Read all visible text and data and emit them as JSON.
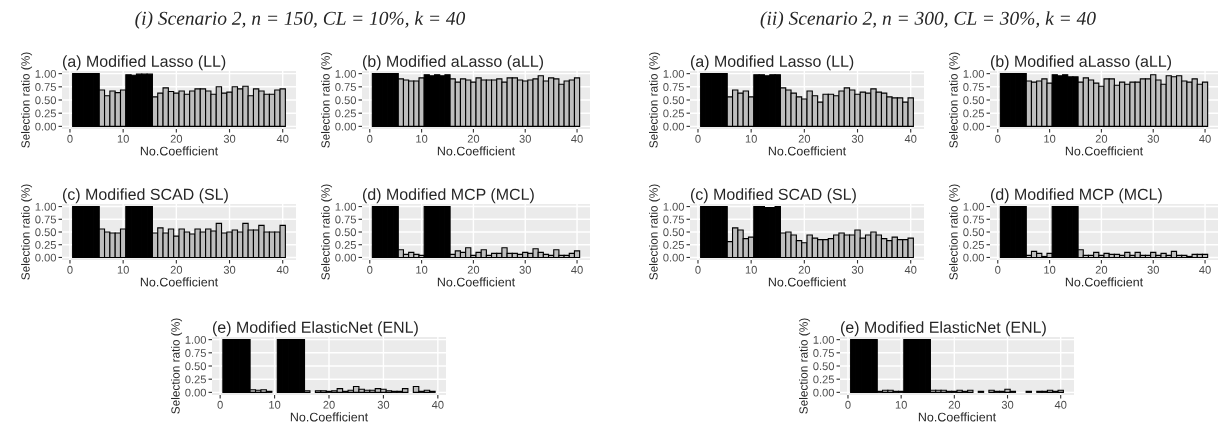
{
  "chart_data": [
    {
      "type": "bar",
      "title": "(a) Modified Lasso (LL)",
      "annotations": [
        "(i) Scenario 2, n = 150, CL = 10%, k = 40"
      ],
      "xlabel": "No.Coefficient",
      "ylabel": "Selection ratio (%)",
      "x": [
        1,
        2,
        3,
        4,
        5,
        6,
        7,
        8,
        9,
        10,
        11,
        12,
        13,
        14,
        15,
        16,
        17,
        18,
        19,
        20,
        21,
        22,
        23,
        24,
        25,
        26,
        27,
        28,
        29,
        30,
        31,
        32,
        33,
        34,
        35,
        36,
        37,
        38,
        39,
        40
      ],
      "values": [
        1,
        1,
        1,
        1,
        1,
        0.69,
        0.58,
        0.67,
        0.64,
        0.69,
        0.98,
        0.97,
        0.99,
        0.99,
        0.99,
        0.56,
        0.63,
        0.73,
        0.66,
        0.63,
        0.67,
        0.61,
        0.67,
        0.71,
        0.71,
        0.67,
        0.61,
        0.75,
        0.63,
        0.65,
        0.75,
        0.71,
        0.76,
        0.58,
        0.71,
        0.67,
        0.61,
        0.61,
        0.69,
        0.71
      ],
      "colors": [
        "#000000",
        "#000000",
        "#000000",
        "#000000",
        "#000000",
        "#bebebe",
        "#bebebe",
        "#bebebe",
        "#bebebe",
        "#bebebe",
        "#000000",
        "#000000",
        "#000000",
        "#000000",
        "#000000",
        "#bebebe",
        "#bebebe",
        "#bebebe",
        "#bebebe",
        "#bebebe",
        "#bebebe",
        "#bebebe",
        "#bebebe",
        "#bebebe",
        "#bebebe",
        "#bebebe",
        "#bebebe",
        "#bebebe",
        "#bebebe",
        "#bebebe",
        "#bebebe",
        "#bebebe",
        "#bebebe",
        "#bebebe",
        "#bebebe",
        "#bebebe",
        "#bebebe",
        "#bebebe",
        "#bebebe",
        "#bebebe"
      ],
      "xlim": [
        -1.5,
        42.5
      ],
      "xticks": [
        0,
        10,
        20,
        30,
        40
      ],
      "ylim": [
        -0.05,
        1.05
      ],
      "yticks": [
        {
          "value": 0,
          "label": "0.00"
        },
        {
          "value": 0.25,
          "label": "0.25"
        },
        {
          "value": 0.5,
          "label": "0.50"
        },
        {
          "value": 0.75,
          "label": "0.75"
        },
        {
          "value": 1,
          "label": "1.00"
        }
      ],
      "grid": true
    },
    {
      "type": "bar",
      "title": "(b) Modified aLasso (aLL)",
      "xlabel": "No.Coefficient",
      "ylabel": "Selection ratio (%)",
      "x": [
        1,
        2,
        3,
        4,
        5,
        6,
        7,
        8,
        9,
        10,
        11,
        12,
        13,
        14,
        15,
        16,
        17,
        18,
        19,
        20,
        21,
        22,
        23,
        24,
        25,
        26,
        27,
        28,
        29,
        30,
        31,
        32,
        33,
        34,
        35,
        36,
        37,
        38,
        39,
        40
      ],
      "values": [
        1,
        1,
        1,
        1,
        1,
        0.9,
        0.88,
        0.86,
        0.86,
        0.92,
        0.98,
        0.96,
        0.98,
        0.96,
        0.98,
        0.9,
        0.84,
        0.9,
        0.88,
        0.84,
        0.92,
        0.88,
        0.88,
        0.88,
        0.9,
        0.84,
        0.92,
        0.92,
        0.88,
        0.86,
        0.88,
        0.9,
        0.96,
        0.86,
        0.92,
        0.9,
        0.8,
        0.86,
        0.88,
        0.92
      ],
      "colors": [
        "#000000",
        "#000000",
        "#000000",
        "#000000",
        "#000000",
        "#bebebe",
        "#bebebe",
        "#bebebe",
        "#bebebe",
        "#bebebe",
        "#000000",
        "#000000",
        "#000000",
        "#000000",
        "#000000",
        "#bebebe",
        "#bebebe",
        "#bebebe",
        "#bebebe",
        "#bebebe",
        "#bebebe",
        "#bebebe",
        "#bebebe",
        "#bebebe",
        "#bebebe",
        "#bebebe",
        "#bebebe",
        "#bebebe",
        "#bebebe",
        "#bebebe",
        "#bebebe",
        "#bebebe",
        "#bebebe",
        "#bebebe",
        "#bebebe",
        "#bebebe",
        "#bebebe",
        "#bebebe",
        "#bebebe",
        "#bebebe"
      ],
      "xlim": [
        -1.5,
        42.5
      ],
      "xticks": [
        0,
        10,
        20,
        30,
        40
      ],
      "ylim": [
        -0.05,
        1.05
      ],
      "yticks": [
        {
          "value": 0,
          "label": "0.00"
        },
        {
          "value": 0.25,
          "label": "0.25"
        },
        {
          "value": 0.5,
          "label": "0.50"
        },
        {
          "value": 0.75,
          "label": "0.75"
        },
        {
          "value": 1,
          "label": "1.00"
        }
      ],
      "grid": true
    },
    {
      "type": "bar",
      "title": "(c) Modified SCAD (SL)",
      "xlabel": "No.Coefficient",
      "ylabel": "Selection ratio (%)",
      "x": [
        1,
        2,
        3,
        4,
        5,
        6,
        7,
        8,
        9,
        10,
        11,
        12,
        13,
        14,
        15,
        16,
        17,
        18,
        19,
        20,
        21,
        22,
        23,
        24,
        25,
        26,
        27,
        28,
        29,
        30,
        31,
        32,
        33,
        34,
        35,
        36,
        37,
        38,
        39,
        40
      ],
      "values": [
        1,
        1,
        1,
        1,
        1,
        0.56,
        0.5,
        0.48,
        0.48,
        0.56,
        1,
        1,
        1,
        1,
        1,
        0.48,
        0.58,
        0.48,
        0.56,
        0.42,
        0.56,
        0.5,
        0.46,
        0.56,
        0.5,
        0.56,
        0.52,
        0.67,
        0.48,
        0.5,
        0.54,
        0.5,
        0.67,
        0.54,
        0.54,
        0.63,
        0.5,
        0.5,
        0.5,
        0.63
      ],
      "colors": [
        "#000000",
        "#000000",
        "#000000",
        "#000000",
        "#000000",
        "#bebebe",
        "#bebebe",
        "#bebebe",
        "#bebebe",
        "#bebebe",
        "#000000",
        "#000000",
        "#000000",
        "#000000",
        "#000000",
        "#bebebe",
        "#bebebe",
        "#bebebe",
        "#bebebe",
        "#bebebe",
        "#bebebe",
        "#bebebe",
        "#bebebe",
        "#bebebe",
        "#bebebe",
        "#bebebe",
        "#bebebe",
        "#bebebe",
        "#bebebe",
        "#bebebe",
        "#bebebe",
        "#bebebe",
        "#bebebe",
        "#bebebe",
        "#bebebe",
        "#bebebe",
        "#bebebe",
        "#bebebe",
        "#bebebe",
        "#bebebe"
      ],
      "xlim": [
        -1.5,
        42.5
      ],
      "xticks": [
        0,
        10,
        20,
        30,
        40
      ],
      "ylim": [
        -0.05,
        1.05
      ],
      "yticks": [
        {
          "value": 0,
          "label": "0.00"
        },
        {
          "value": 0.25,
          "label": "0.25"
        },
        {
          "value": 0.5,
          "label": "0.50"
        },
        {
          "value": 0.75,
          "label": "0.75"
        },
        {
          "value": 1,
          "label": "1.00"
        }
      ],
      "grid": true
    },
    {
      "type": "bar",
      "title": "(d) Modified MCP (MCL)",
      "xlabel": "No.Coefficient",
      "ylabel": "Selection ratio (%)",
      "x": [
        1,
        2,
        3,
        4,
        5,
        6,
        7,
        8,
        9,
        10,
        11,
        12,
        13,
        14,
        15,
        16,
        17,
        18,
        19,
        20,
        21,
        22,
        23,
        24,
        25,
        26,
        27,
        28,
        29,
        30,
        31,
        32,
        33,
        34,
        35,
        36,
        37,
        38,
        39,
        40
      ],
      "values": [
        1,
        1,
        1,
        1,
        1,
        0.15,
        0.06,
        0.1,
        0.06,
        0.04,
        1,
        1,
        1,
        1,
        1,
        0.06,
        0.13,
        0.1,
        0.19,
        0.04,
        0.1,
        0.15,
        0.04,
        0.08,
        0.08,
        0.19,
        0.08,
        0.08,
        0.06,
        0.1,
        0.08,
        0.17,
        0.1,
        0.06,
        0.04,
        0.15,
        0.04,
        0.04,
        0.08,
        0.13
      ],
      "colors": [
        "#000000",
        "#000000",
        "#000000",
        "#000000",
        "#000000",
        "#bebebe",
        "#bebebe",
        "#bebebe",
        "#bebebe",
        "#bebebe",
        "#000000",
        "#000000",
        "#000000",
        "#000000",
        "#000000",
        "#bebebe",
        "#bebebe",
        "#bebebe",
        "#bebebe",
        "#bebebe",
        "#bebebe",
        "#bebebe",
        "#bebebe",
        "#bebebe",
        "#bebebe",
        "#bebebe",
        "#bebebe",
        "#bebebe",
        "#bebebe",
        "#bebebe",
        "#bebebe",
        "#bebebe",
        "#bebebe",
        "#bebebe",
        "#bebebe",
        "#bebebe",
        "#bebebe",
        "#bebebe",
        "#bebebe",
        "#bebebe"
      ],
      "xlim": [
        -1.5,
        42.5
      ],
      "xticks": [
        0,
        10,
        20,
        30,
        40
      ],
      "ylim": [
        -0.05,
        1.05
      ],
      "yticks": [
        {
          "value": 0,
          "label": "0.00"
        },
        {
          "value": 0.25,
          "label": "0.25"
        },
        {
          "value": 0.5,
          "label": "0.50"
        },
        {
          "value": 0.75,
          "label": "0.75"
        },
        {
          "value": 1,
          "label": "1.00"
        }
      ],
      "grid": true
    },
    {
      "type": "bar",
      "title": "(e) Modified ElasticNet (ENL)",
      "xlabel": "No.Coefficient",
      "ylabel": "Selection ratio (%)",
      "x": [
        1,
        2,
        3,
        4,
        5,
        6,
        7,
        8,
        9,
        10,
        11,
        12,
        13,
        14,
        15,
        16,
        17,
        18,
        19,
        20,
        21,
        22,
        23,
        24,
        25,
        26,
        27,
        28,
        29,
        30,
        31,
        32,
        33,
        34,
        35,
        36,
        37,
        38,
        39
      ],
      "values": [
        1,
        1,
        1,
        1,
        1,
        0.05,
        0.04,
        0.05,
        0.02,
        null,
        1,
        1,
        1,
        1,
        1,
        0.03,
        null,
        0.03,
        0.03,
        0.02,
        0.03,
        0.07,
        0.02,
        0.04,
        0.11,
        0.06,
        0.04,
        0.04,
        0.07,
        0.06,
        0.03,
        0.02,
        0.02,
        0.07,
        null,
        0.11,
        0.02,
        0.04,
        0.02
      ],
      "colors": [
        "#000000",
        "#000000",
        "#000000",
        "#000000",
        "#000000",
        "#bebebe",
        "#bebebe",
        "#bebebe",
        "#bebebe",
        "#bebebe",
        "#000000",
        "#000000",
        "#000000",
        "#000000",
        "#000000",
        "#bebebe",
        "#bebebe",
        "#bebebe",
        "#bebebe",
        "#bebebe",
        "#bebebe",
        "#bebebe",
        "#bebebe",
        "#bebebe",
        "#bebebe",
        "#bebebe",
        "#bebebe",
        "#bebebe",
        "#bebebe",
        "#bebebe",
        "#bebebe",
        "#bebebe",
        "#bebebe",
        "#bebebe",
        "#bebebe",
        "#bebebe",
        "#bebebe",
        "#bebebe",
        "#bebebe"
      ],
      "xlim": [
        -1.5,
        41.5
      ],
      "xticks": [
        0,
        10,
        20,
        30,
        40
      ],
      "ylim": [
        -0.05,
        1.05
      ],
      "yticks": [
        {
          "value": 0,
          "label": "0.00"
        },
        {
          "value": 0.25,
          "label": "0.25"
        },
        {
          "value": 0.5,
          "label": "0.50"
        },
        {
          "value": 0.75,
          "label": "0.75"
        },
        {
          "value": 1,
          "label": "1.00"
        }
      ],
      "grid": true
    },
    {
      "type": "bar",
      "title": "(a) Modified Lasso (LL)",
      "annotations": [
        "(ii) Scenario 2, n = 300, CL = 30%, k = 40"
      ],
      "xlabel": "No.Coefficient",
      "ylabel": "Selection ratio (%)",
      "x": [
        1,
        2,
        3,
        4,
        5,
        6,
        7,
        8,
        9,
        10,
        11,
        12,
        13,
        14,
        15,
        16,
        17,
        18,
        19,
        20,
        21,
        22,
        23,
        24,
        25,
        26,
        27,
        28,
        29,
        30,
        31,
        32,
        33,
        34,
        35,
        36,
        37,
        38,
        39,
        40
      ],
      "values": [
        1,
        1,
        1,
        1,
        1,
        0.56,
        0.69,
        0.63,
        0.67,
        0.56,
        0.98,
        0.98,
        0.96,
        0.98,
        0.98,
        0.73,
        0.69,
        0.63,
        0.56,
        0.52,
        0.67,
        0.58,
        0.46,
        0.61,
        0.61,
        0.58,
        0.67,
        0.73,
        0.69,
        0.61,
        0.65,
        0.63,
        0.71,
        0.65,
        0.63,
        0.56,
        0.54,
        0.54,
        0.46,
        0.54
      ],
      "colors": [
        "#000000",
        "#000000",
        "#000000",
        "#000000",
        "#000000",
        "#bebebe",
        "#bebebe",
        "#bebebe",
        "#bebebe",
        "#bebebe",
        "#000000",
        "#000000",
        "#000000",
        "#000000",
        "#000000",
        "#bebebe",
        "#bebebe",
        "#bebebe",
        "#bebebe",
        "#bebebe",
        "#bebebe",
        "#bebebe",
        "#bebebe",
        "#bebebe",
        "#bebebe",
        "#bebebe",
        "#bebebe",
        "#bebebe",
        "#bebebe",
        "#bebebe",
        "#bebebe",
        "#bebebe",
        "#bebebe",
        "#bebebe",
        "#bebebe",
        "#bebebe",
        "#bebebe",
        "#bebebe",
        "#bebebe",
        "#bebebe"
      ],
      "xlim": [
        -1.5,
        42.5
      ],
      "xticks": [
        0,
        10,
        20,
        30,
        40
      ],
      "ylim": [
        -0.05,
        1.05
      ],
      "yticks": [
        {
          "value": 0,
          "label": "0.00"
        },
        {
          "value": 0.25,
          "label": "0.25"
        },
        {
          "value": 0.5,
          "label": "0.50"
        },
        {
          "value": 0.75,
          "label": "0.75"
        },
        {
          "value": 1,
          "label": "1.00"
        }
      ],
      "grid": true
    },
    {
      "type": "bar",
      "title": "(b) Modified aLasso (aLL)",
      "xlabel": "No.Coefficient",
      "ylabel": "Selection ratio (%)",
      "x": [
        1,
        2,
        3,
        4,
        5,
        6,
        7,
        8,
        9,
        10,
        11,
        12,
        13,
        14,
        15,
        16,
        17,
        18,
        19,
        20,
        21,
        22,
        23,
        24,
        25,
        26,
        27,
        28,
        29,
        30,
        31,
        32,
        33,
        34,
        35,
        36,
        37,
        38,
        39,
        40
      ],
      "values": [
        1,
        1,
        1,
        1,
        1,
        0.86,
        0.84,
        0.86,
        0.9,
        0.82,
        0.98,
        0.96,
        0.98,
        0.94,
        0.94,
        0.84,
        0.92,
        0.88,
        0.82,
        0.76,
        0.9,
        0.9,
        0.78,
        0.84,
        0.8,
        0.84,
        0.84,
        0.9,
        0.9,
        0.98,
        0.88,
        0.8,
        0.96,
        0.94,
        0.96,
        0.86,
        0.84,
        0.9,
        0.8,
        0.84
      ],
      "colors": [
        "#000000",
        "#000000",
        "#000000",
        "#000000",
        "#000000",
        "#bebebe",
        "#bebebe",
        "#bebebe",
        "#bebebe",
        "#bebebe",
        "#000000",
        "#000000",
        "#000000",
        "#000000",
        "#000000",
        "#bebebe",
        "#bebebe",
        "#bebebe",
        "#bebebe",
        "#bebebe",
        "#bebebe",
        "#bebebe",
        "#bebebe",
        "#bebebe",
        "#bebebe",
        "#bebebe",
        "#bebebe",
        "#bebebe",
        "#bebebe",
        "#bebebe",
        "#bebebe",
        "#bebebe",
        "#bebebe",
        "#bebebe",
        "#bebebe",
        "#bebebe",
        "#bebebe",
        "#bebebe",
        "#bebebe",
        "#bebebe"
      ],
      "xlim": [
        -1.5,
        42.5
      ],
      "xticks": [
        0,
        10,
        20,
        30,
        40
      ],
      "ylim": [
        -0.05,
        1.05
      ],
      "yticks": [
        {
          "value": 0,
          "label": "0.00"
        },
        {
          "value": 0.25,
          "label": "0.25"
        },
        {
          "value": 0.5,
          "label": "0.50"
        },
        {
          "value": 0.75,
          "label": "0.75"
        },
        {
          "value": 1,
          "label": "1.00"
        }
      ],
      "grid": true
    },
    {
      "type": "bar",
      "title": "(c) Modified SCAD (SL)",
      "xlabel": "No.Coefficient",
      "ylabel": "Selection ratio (%)",
      "x": [
        1,
        2,
        3,
        4,
        5,
        6,
        7,
        8,
        9,
        10,
        11,
        12,
        13,
        14,
        15,
        16,
        17,
        18,
        19,
        20,
        21,
        22,
        23,
        24,
        25,
        26,
        27,
        28,
        29,
        30,
        31,
        32,
        33,
        34,
        35,
        36,
        37,
        38,
        39,
        40
      ],
      "values": [
        1,
        1,
        1,
        1,
        1,
        0.31,
        0.58,
        0.54,
        0.37,
        0.4,
        1,
        1,
        0.98,
        0.98,
        1,
        0.48,
        0.5,
        0.44,
        0.33,
        0.29,
        0.44,
        0.38,
        0.35,
        0.35,
        0.37,
        0.44,
        0.48,
        0.44,
        0.44,
        0.54,
        0.38,
        0.44,
        0.5,
        0.44,
        0.37,
        0.33,
        0.4,
        0.35,
        0.35,
        0.38
      ],
      "colors": [
        "#000000",
        "#000000",
        "#000000",
        "#000000",
        "#000000",
        "#bebebe",
        "#bebebe",
        "#bebebe",
        "#bebebe",
        "#bebebe",
        "#000000",
        "#000000",
        "#000000",
        "#000000",
        "#000000",
        "#bebebe",
        "#bebebe",
        "#bebebe",
        "#bebebe",
        "#bebebe",
        "#bebebe",
        "#bebebe",
        "#bebebe",
        "#bebebe",
        "#bebebe",
        "#bebebe",
        "#bebebe",
        "#bebebe",
        "#bebebe",
        "#bebebe",
        "#bebebe",
        "#bebebe",
        "#bebebe",
        "#bebebe",
        "#bebebe",
        "#bebebe",
        "#bebebe",
        "#bebebe",
        "#bebebe",
        "#bebebe"
      ],
      "xlim": [
        -1.5,
        42.5
      ],
      "xticks": [
        0,
        10,
        20,
        30,
        40
      ],
      "ylim": [
        -0.05,
        1.05
      ],
      "yticks": [
        {
          "value": 0,
          "label": "0.00"
        },
        {
          "value": 0.25,
          "label": "0.25"
        },
        {
          "value": 0.5,
          "label": "0.50"
        },
        {
          "value": 0.75,
          "label": "0.75"
        },
        {
          "value": 1,
          "label": "1.00"
        }
      ],
      "grid": true
    },
    {
      "type": "bar",
      "title": "(d) Modified MCP (MCL)",
      "xlabel": "No.Coefficient",
      "ylabel": "Selection ratio (%)",
      "x": [
        1,
        2,
        3,
        4,
        5,
        6,
        7,
        8,
        9,
        10,
        11,
        12,
        13,
        14,
        15,
        16,
        17,
        18,
        19,
        20,
        21,
        22,
        23,
        24,
        25,
        26,
        27,
        28,
        29,
        30,
        31,
        32,
        33,
        34,
        35,
        36,
        37,
        38,
        39,
        40
      ],
      "values": [
        1,
        1,
        1,
        1,
        1,
        0.04,
        0.12,
        0.08,
        0.02,
        0.08,
        1,
        1,
        1,
        1,
        1,
        0.15,
        0.04,
        0.04,
        0.1,
        0.04,
        0.08,
        0.06,
        0.06,
        0.04,
        0.1,
        0.04,
        0.1,
        0.04,
        0.04,
        0.1,
        0.04,
        0.08,
        0.04,
        0.12,
        0.04,
        0.04,
        0.02,
        0.06,
        0.06,
        0.06
      ],
      "colors": [
        "#000000",
        "#000000",
        "#000000",
        "#000000",
        "#000000",
        "#bebebe",
        "#bebebe",
        "#bebebe",
        "#bebebe",
        "#bebebe",
        "#000000",
        "#000000",
        "#000000",
        "#000000",
        "#000000",
        "#bebebe",
        "#bebebe",
        "#bebebe",
        "#bebebe",
        "#bebebe",
        "#bebebe",
        "#bebebe",
        "#bebebe",
        "#bebebe",
        "#bebebe",
        "#bebebe",
        "#bebebe",
        "#bebebe",
        "#bebebe",
        "#bebebe",
        "#bebebe",
        "#bebebe",
        "#bebebe",
        "#bebebe",
        "#bebebe",
        "#bebebe",
        "#bebebe",
        "#bebebe",
        "#bebebe",
        "#bebebe"
      ],
      "xlim": [
        -1.5,
        42.5
      ],
      "xticks": [
        0,
        10,
        20,
        30,
        40
      ],
      "ylim": [
        -0.05,
        1.05
      ],
      "yticks": [
        {
          "value": 0,
          "label": "0.00"
        },
        {
          "value": 0.25,
          "label": "0.25"
        },
        {
          "value": 0.5,
          "label": "0.50"
        },
        {
          "value": 0.75,
          "label": "0.75"
        },
        {
          "value": 1,
          "label": "1.00"
        }
      ],
      "grid": true
    },
    {
      "type": "bar",
      "title": "(e) Modified ElasticNet (ENL)",
      "xlabel": "No.Coefficient",
      "ylabel": "Selection ratio (%)",
      "x": [
        1,
        2,
        3,
        4,
        5,
        6,
        7,
        8,
        9,
        10,
        11,
        12,
        13,
        14,
        15,
        16,
        17,
        18,
        19,
        20,
        21,
        22,
        23,
        24,
        25,
        26,
        27,
        28,
        29,
        30,
        31,
        32,
        33,
        34,
        35,
        36,
        37,
        38,
        39,
        40
      ],
      "values": [
        1,
        1,
        1,
        1,
        1,
        0.02,
        0.04,
        0.04,
        0.02,
        0.02,
        1,
        1,
        1,
        1,
        1,
        0.04,
        0.04,
        0.04,
        0.02,
        0.02,
        0.04,
        0.02,
        0.04,
        null,
        0.02,
        null,
        0.04,
        0.02,
        0.02,
        0.06,
        0.02,
        null,
        null,
        0.02,
        null,
        0.02,
        0.02,
        0.04,
        0.02,
        0.04
      ],
      "colors": [
        "#000000",
        "#000000",
        "#000000",
        "#000000",
        "#000000",
        "#bebebe",
        "#bebebe",
        "#bebebe",
        "#bebebe",
        "#bebebe",
        "#000000",
        "#000000",
        "#000000",
        "#000000",
        "#000000",
        "#bebebe",
        "#bebebe",
        "#bebebe",
        "#bebebe",
        "#bebebe",
        "#bebebe",
        "#bebebe",
        "#bebebe",
        "#bebebe",
        "#bebebe",
        "#bebebe",
        "#bebebe",
        "#bebebe",
        "#bebebe",
        "#bebebe",
        "#bebebe",
        "#bebebe",
        "#bebebe",
        "#bebebe",
        "#bebebe",
        "#bebebe",
        "#bebebe",
        "#bebebe",
        "#bebebe",
        "#bebebe"
      ],
      "xlim": [
        -1.5,
        42.5
      ],
      "xticks": [
        0,
        10,
        20,
        30,
        40
      ],
      "ylim": [
        -0.05,
        1.05
      ],
      "yticks": [
        {
          "value": 0,
          "label": "0.00"
        },
        {
          "value": 0.25,
          "label": "0.25"
        },
        {
          "value": 0.5,
          "label": "0.50"
        },
        {
          "value": 0.75,
          "label": "0.75"
        },
        {
          "value": 1,
          "label": "1.00"
        }
      ],
      "grid": true
    }
  ]
}
